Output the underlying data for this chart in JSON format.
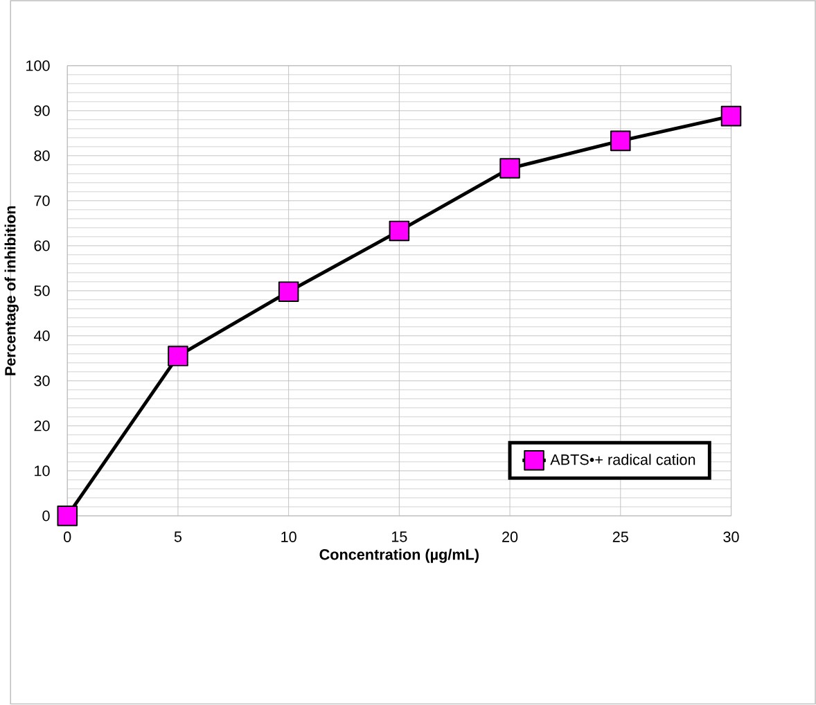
{
  "chart_data": {
    "type": "line",
    "xlabel": "Concentration (µg/mL)",
    "ylabel": "Percentage of inhibition",
    "x": [
      0,
      5,
      10,
      15,
      20,
      25,
      30
    ],
    "series": [
      {
        "name": "ABTS•+ radical cation",
        "color": "#ff00ff",
        "values": [
          0,
          35.5,
          49.8,
          63.3,
          77.2,
          83.3,
          88.8
        ]
      }
    ],
    "xlim": [
      0,
      30
    ],
    "xticks": [
      0,
      5,
      10,
      15,
      20,
      25,
      30
    ],
    "ylim": [
      0,
      100
    ],
    "yticks": [
      0,
      10,
      20,
      30,
      40,
      50,
      60,
      70,
      80,
      90,
      100
    ],
    "grid": true,
    "legend": "bottom right",
    "marker": "square",
    "line_style": "solid"
  }
}
